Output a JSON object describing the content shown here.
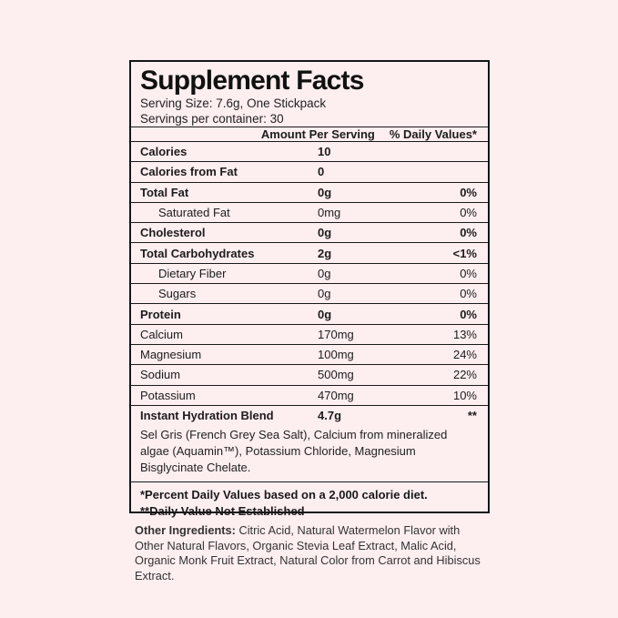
{
  "colors": {
    "page_background": "#fdeef0",
    "label_background": "#fdeef0",
    "border": "#161616",
    "text": "#1c1c1c"
  },
  "label": {
    "title": "Supplement Facts",
    "serving_size": "Serving Size: 7.6g, One Stickpack",
    "servings_per_container": "Servings per container: 30",
    "columns": {
      "amount_header": "Amount Per Serving",
      "daily_value_header": "% Daily Values*"
    },
    "rows": [
      {
        "name": "Calories",
        "amount": "10",
        "dv": "",
        "bold": true,
        "indent": false
      },
      {
        "name": "Calories from Fat",
        "amount": "0",
        "dv": "",
        "bold": true,
        "indent": false
      },
      {
        "name": "Total Fat",
        "amount": "0g",
        "dv": "0%",
        "bold": true,
        "indent": false
      },
      {
        "name": "Saturated Fat",
        "amount": "0mg",
        "dv": "0%",
        "bold": false,
        "indent": true
      },
      {
        "name": "Cholesterol",
        "amount": "0g",
        "dv": "0%",
        "bold": true,
        "indent": false
      },
      {
        "name": "Total Carbohydrates",
        "amount": "2g",
        "dv": "<1%",
        "bold": true,
        "indent": false
      },
      {
        "name": "Dietary Fiber",
        "amount": "0g",
        "dv": "0%",
        "bold": false,
        "indent": true
      },
      {
        "name": "Sugars",
        "amount": "0g",
        "dv": "0%",
        "bold": false,
        "indent": true
      },
      {
        "name": "Protein",
        "amount": "0g",
        "dv": "0%",
        "bold": true,
        "indent": false
      },
      {
        "name": "Calcium",
        "amount": "170mg",
        "dv": "13%",
        "bold": false,
        "indent": false
      },
      {
        "name": "Magnesium",
        "amount": "100mg",
        "dv": "24%",
        "bold": false,
        "indent": false
      },
      {
        "name": "Sodium",
        "amount": "500mg",
        "dv": "22%",
        "bold": false,
        "indent": false
      },
      {
        "name": "Potassium",
        "amount": "470mg",
        "dv": "10%",
        "bold": false,
        "indent": false
      },
      {
        "name": "Instant Hydration Blend",
        "amount": "4.7g",
        "dv": "**",
        "bold": true,
        "indent": false
      }
    ],
    "blend_description": "Sel Gris (French Grey Sea Salt), Calcium from mineralized algae (Aquamin™), Potassium Chloride, Magnesium Bisglycinate Chelate.",
    "footnotes": [
      "*Percent Daily Values based on a 2,000 calorie diet.",
      "**Daily Value Not Established"
    ]
  },
  "other_ingredients": {
    "label": "Other Ingredients:",
    "text": " Citric Acid, Natural Watermelon Flavor with Other Natural Flavors, Organic Stevia Leaf Extract, Malic Acid, Organic Monk Fruit Extract, Natural Color from Carrot and Hibiscus Extract."
  }
}
